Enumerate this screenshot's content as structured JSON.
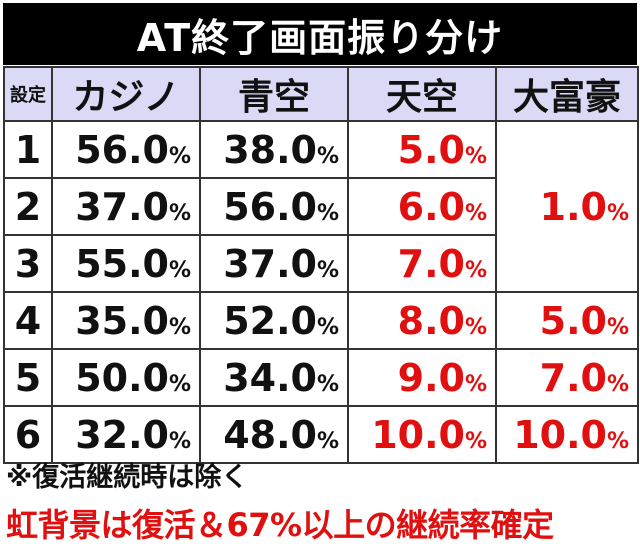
{
  "title": "AT終了画面振り分け",
  "headers": {
    "setting": "設定",
    "casino": "カジノ",
    "aozora": "青空",
    "tenku": "天空",
    "daifugo": "大富豪"
  },
  "rows": [
    {
      "setting": "1",
      "casino": "56.0",
      "aozora": "38.0",
      "tenku": "5.0"
    },
    {
      "setting": "2",
      "casino": "37.0",
      "aozora": "56.0",
      "tenku": "6.0"
    },
    {
      "setting": "3",
      "casino": "55.0",
      "aozora": "37.0",
      "tenku": "7.0"
    },
    {
      "setting": "4",
      "casino": "35.0",
      "aozora": "52.0",
      "tenku": "8.0",
      "daifugo": "5.0"
    },
    {
      "setting": "5",
      "casino": "50.0",
      "aozora": "34.0",
      "tenku": "9.0",
      "daifugo": "7.0"
    },
    {
      "setting": "6",
      "casino": "32.0",
      "aozora": "48.0",
      "tenku": "10.0",
      "daifugo": "10.0"
    }
  ],
  "merged_daifugo_1_3": "1.0",
  "percent_sign": "%",
  "colors": {
    "red": "#e01010",
    "header_bg": "#dadaf6",
    "title_bg": "#000000"
  },
  "notes": {
    "note1": "※復活継続時は除く",
    "note2": "虹背景は復活＆67%以上の継続率確定"
  }
}
